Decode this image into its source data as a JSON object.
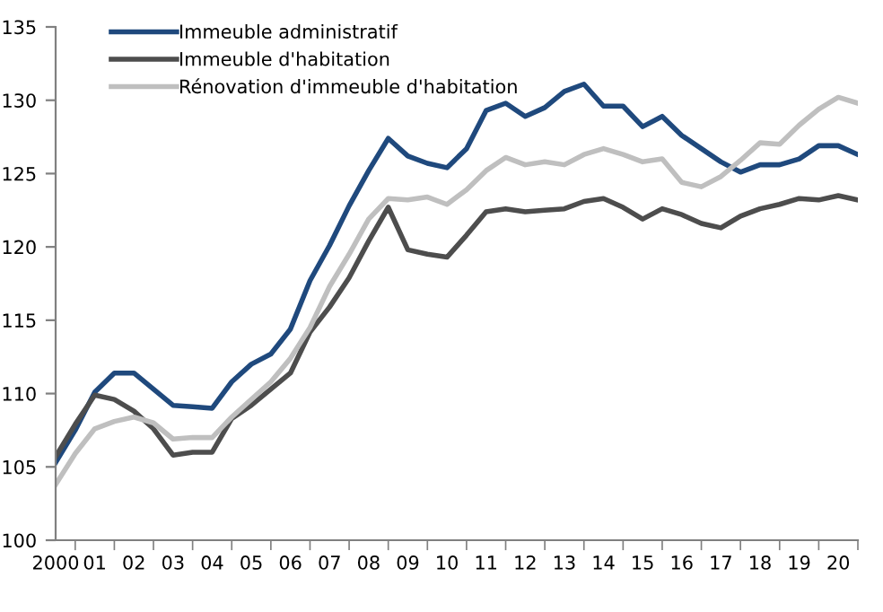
{
  "chart_data": {
    "type": "line",
    "categories": [
      "2000",
      null,
      "01",
      null,
      "02",
      null,
      "03",
      null,
      "04",
      null,
      "05",
      null,
      "06",
      null,
      "07",
      null,
      "08",
      null,
      "09",
      null,
      "10",
      null,
      "11",
      null,
      "12",
      null,
      "13",
      null,
      "14",
      null,
      "15",
      null,
      "16",
      null,
      "17",
      null,
      "18",
      null,
      "19",
      null,
      "20",
      null
    ],
    "series": [
      {
        "name": "Immeuble administratif",
        "color": "#1f497d",
        "values": [
          105.3,
          107.5,
          110.1,
          111.4,
          111.4,
          110.3,
          109.2,
          109.1,
          109.0,
          110.8,
          112.0,
          112.7,
          114.4,
          117.7,
          120.1,
          122.8,
          125.2,
          127.4,
          126.2,
          125.7,
          125.4,
          126.7,
          129.3,
          129.8,
          128.9,
          129.5,
          130.6,
          131.1,
          129.6,
          129.6,
          128.2,
          128.9,
          127.6,
          126.7,
          125.8,
          125.1,
          125.6,
          125.6,
          126.0,
          126.9,
          126.9,
          126.3
        ]
      },
      {
        "name": "Immeuble d'habitation",
        "color": "#4d4d4d",
        "values": [
          105.7,
          107.9,
          109.9,
          109.6,
          108.8,
          107.6,
          105.8,
          106.0,
          106.0,
          108.3,
          109.2,
          110.3,
          111.4,
          114.2,
          115.9,
          117.9,
          120.4,
          122.7,
          119.8,
          119.5,
          119.3,
          120.8,
          122.4,
          122.6,
          122.4,
          122.5,
          122.6,
          123.1,
          123.3,
          122.7,
          121.9,
          122.6,
          122.2,
          121.6,
          121.3,
          122.1,
          122.6,
          122.9,
          123.3,
          123.2,
          123.5,
          123.2
        ]
      },
      {
        "name": "Rénovation d'immeuble d'habitation",
        "color": "#bfbfbf",
        "values": [
          103.8,
          105.9,
          107.6,
          108.1,
          108.4,
          108.0,
          106.9,
          107.0,
          107.0,
          108.4,
          109.6,
          110.8,
          112.4,
          114.5,
          117.3,
          119.5,
          121.9,
          123.3,
          123.2,
          123.4,
          122.9,
          123.9,
          125.2,
          126.1,
          125.6,
          125.8,
          125.6,
          126.3,
          126.7,
          126.3,
          125.8,
          126.0,
          124.4,
          124.1,
          124.8,
          125.9,
          127.1,
          127.0,
          128.3,
          129.4,
          130.2,
          129.8
        ]
      }
    ],
    "ylim": [
      100,
      135
    ],
    "yticks": [
      100,
      105,
      110,
      115,
      120,
      125,
      130,
      135
    ],
    "grid": false,
    "legend": "top left"
  }
}
